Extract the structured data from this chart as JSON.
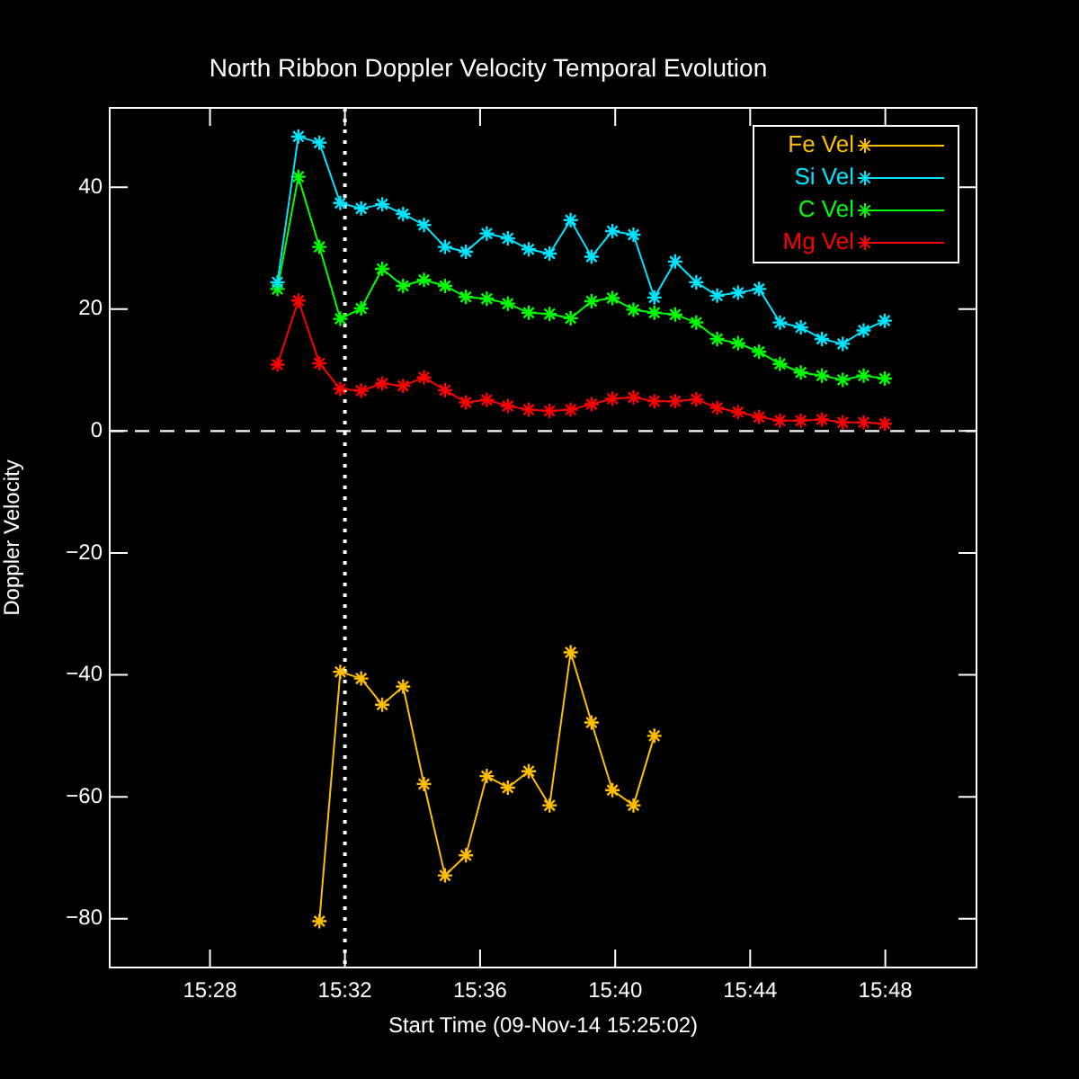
{
  "chart_data": {
    "type": "line",
    "title": "North Ribbon Doppler Velocity Temporal Evolution",
    "xlabel": "Start Time (09-Nov-14 15:25:02)",
    "ylabel": "Doppler Velocity",
    "x": [
      15.5,
      15.5103,
      15.5207,
      15.531,
      15.5413,
      15.5517,
      15.562,
      15.5723,
      15.5827,
      15.593,
      15.6033,
      15.6137,
      15.624,
      15.6343,
      15.6447,
      15.655,
      15.6653,
      15.6757,
      15.686,
      15.6963,
      15.7067,
      15.717,
      15.7273,
      15.7377,
      15.748,
      15.7583,
      15.7687,
      15.779,
      15.7893,
      15.7997
    ],
    "series": [
      {
        "name": "Fe Vel",
        "color": "#ffbf00",
        "values": [
          null,
          null,
          -80.4,
          -39.5,
          -40.6,
          -44.9,
          -41.9,
          -57.9,
          -72.9,
          -69.6,
          -56.6,
          -58.5,
          -55.8,
          -61.4,
          -36.3,
          -47.8,
          -58.9,
          -61.4,
          -50.0,
          null,
          null,
          null,
          null,
          null,
          null,
          null,
          null,
          null,
          null,
          null
        ]
      },
      {
        "name": "Si Vel",
        "color": "#00e5ff",
        "values": [
          24.4,
          48.3,
          47.3,
          37.4,
          36.5,
          37.2,
          35.6,
          33.8,
          30.2,
          29.4,
          32.4,
          31.6,
          29.8,
          29.1,
          34.6,
          28.6,
          32.8,
          32.2,
          21.9,
          27.8,
          24.4,
          22.2,
          22.7,
          23.3,
          17.8,
          17.0,
          15.1,
          14.3,
          16.5,
          18.1
        ]
      },
      {
        "name": "C Vel",
        "color": "#00ff00",
        "values": [
          23.3,
          41.7,
          30.2,
          18.4,
          20.1,
          26.6,
          23.8,
          24.8,
          23.8,
          22.0,
          21.7,
          20.9,
          19.4,
          19.2,
          18.5,
          21.3,
          21.8,
          19.9,
          19.4,
          19.1,
          17.8,
          15.1,
          14.4,
          13.0,
          11.0,
          9.6,
          9.1,
          8.4,
          9.1,
          8.6
        ]
      },
      {
        "name": "Mg Vel",
        "color": "#ff0000",
        "values": [
          10.9,
          21.4,
          11.1,
          6.9,
          6.6,
          7.8,
          7.4,
          8.8,
          6.7,
          4.7,
          5.1,
          4.1,
          3.5,
          3.3,
          3.5,
          4.4,
          5.3,
          5.5,
          4.9,
          4.9,
          5.2,
          3.8,
          3.1,
          2.3,
          1.7,
          1.7,
          1.9,
          1.4,
          1.4,
          1.2
        ]
      }
    ],
    "xlim": [
      15.4172,
      15.845
    ],
    "xticks": [
      {
        "value": 15.4667,
        "label": "15:28"
      },
      {
        "value": 15.5333,
        "label": "15:32"
      },
      {
        "value": 15.6,
        "label": "15:36"
      },
      {
        "value": 15.6667,
        "label": "15:40"
      },
      {
        "value": 15.7333,
        "label": "15:44"
      },
      {
        "value": 15.8,
        "label": "15:48"
      }
    ],
    "ylim": [
      -88,
      53
    ],
    "yticks": [
      -80,
      -60,
      -40,
      -20,
      0,
      20,
      40
    ],
    "ref_lines": [
      {
        "axis": "y",
        "value": 0,
        "color": "#ffffff",
        "line_style": "dashed"
      },
      {
        "axis": "x",
        "value": 15.5333,
        "color": "#ffffff",
        "line_style": "dotted"
      }
    ],
    "grid": false,
    "legend": "top right",
    "marker": "cross",
    "line_style": "solid"
  }
}
